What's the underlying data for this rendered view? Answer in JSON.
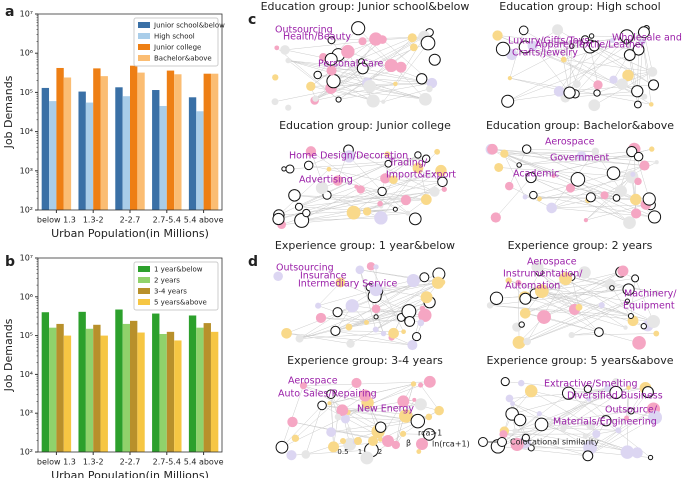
{
  "chart_data": [
    {
      "type": "bar",
      "panel": "a",
      "log_y": true,
      "legend": "upper right",
      "xlabel": "Urban Population(in Millions)",
      "ylabel": "Job Demands",
      "categories": [
        "below 1.3",
        "1.3-2",
        "2-2.7",
        "2.7-5.4",
        "5.4 above"
      ],
      "ylim": [
        100,
        10000000
      ],
      "yticks": [
        {
          "value": 100,
          "label": "10²"
        },
        {
          "value": 1000,
          "label": "10³"
        },
        {
          "value": 10000,
          "label": "10⁴"
        },
        {
          "value": 100000,
          "label": "10⁵"
        },
        {
          "value": 1000000,
          "label": "10⁶"
        },
        {
          "value": 10000000,
          "label": "10⁷"
        }
      ],
      "series": [
        {
          "name": "Junior school&below",
          "color": "#3a70a6",
          "values": [
            130000,
            105000,
            135000,
            115000,
            75000
          ]
        },
        {
          "name": "High school",
          "color": "#a9cde9",
          "values": [
            60000,
            55000,
            80000,
            45000,
            33000
          ]
        },
        {
          "name": "Junior college",
          "color": "#ee7f14",
          "values": [
            420000,
            410000,
            480000,
            360000,
            300000
          ]
        },
        {
          "name": "Bachelor&above",
          "color": "#fbbd73",
          "values": [
            240000,
            260000,
            320000,
            290000,
            300000
          ]
        }
      ]
    },
    {
      "type": "bar",
      "panel": "b",
      "log_y": true,
      "legend": "upper right",
      "xlabel": "Urban Population(in Millions)",
      "ylabel": "Job Demands",
      "categories": [
        "below 1.3",
        "1.3-2",
        "2-2.7",
        "2.7-5.4",
        "5.4 above"
      ],
      "ylim": [
        100,
        10000000
      ],
      "yticks": [
        {
          "value": 100,
          "label": "10²"
        },
        {
          "value": 1000,
          "label": "10³"
        },
        {
          "value": 10000,
          "label": "10⁴"
        },
        {
          "value": 100000,
          "label": "10⁵"
        },
        {
          "value": 1000000,
          "label": "10⁶"
        },
        {
          "value": 10000000,
          "label": "10⁷"
        }
      ],
      "series": [
        {
          "name": "1 year&below",
          "color": "#2ca02c",
          "values": [
            400000,
            410000,
            470000,
            370000,
            330000
          ]
        },
        {
          "name": "2 years",
          "color": "#90d26b",
          "values": [
            160000,
            150000,
            200000,
            110000,
            160000
          ]
        },
        {
          "name": "3-4 years",
          "color": "#b8902b",
          "values": [
            200000,
            190000,
            240000,
            125000,
            210000
          ]
        },
        {
          "name": "5 years&above",
          "color": "#f6c643",
          "values": [
            100000,
            100000,
            120000,
            75000,
            125000
          ]
        }
      ]
    }
  ],
  "network": {
    "panels": [
      "c",
      "d"
    ],
    "groups": [
      {
        "title": "Education group: Junior school&below",
        "labels": [
          "Outsourcing",
          "Health/Beauty",
          "Personal Care"
        ]
      },
      {
        "title": "Education group: High school",
        "labels": [
          "Wholesale and Retail",
          "Luxury/Gifts/Toys",
          "Apparel/Textile/Leather",
          "Crafts/Jewelry"
        ]
      },
      {
        "title": "Education group: Junior college",
        "labels": [
          "Home Design/Decoration",
          "Trading/",
          "Import&Export",
          "Advertising"
        ]
      },
      {
        "title": "Education group: Bachelor&above",
        "labels": [
          "Aerospace",
          "Government",
          "Academic"
        ]
      },
      {
        "title": "Experience group: 1 year&below",
        "labels": [
          "Outsourcing",
          "Insurance",
          "Intermediary Service"
        ]
      },
      {
        "title": "Experience group: 2 years",
        "labels": [
          "Aerospace",
          "Instrumentation/",
          "Automation",
          "Machinery/",
          "Equipment"
        ]
      },
      {
        "title": "Experience group: 3-4 years",
        "labels": [
          "Aerospace",
          "Auto Sales/Repairing",
          "New Energy"
        ]
      },
      {
        "title": "Experience group: 5 years&above",
        "labels": [
          "Extractive/Smelting",
          "Diversified Business",
          "Outsource/",
          "Materials/Engineering"
        ]
      }
    ],
    "legend": {
      "sizes": [
        "0.5",
        "1",
        "2"
      ],
      "beta": "β",
      "rca": "rca>1",
      "ln": "ln(rca+1)",
      "edge": "Colocational similarity"
    }
  }
}
